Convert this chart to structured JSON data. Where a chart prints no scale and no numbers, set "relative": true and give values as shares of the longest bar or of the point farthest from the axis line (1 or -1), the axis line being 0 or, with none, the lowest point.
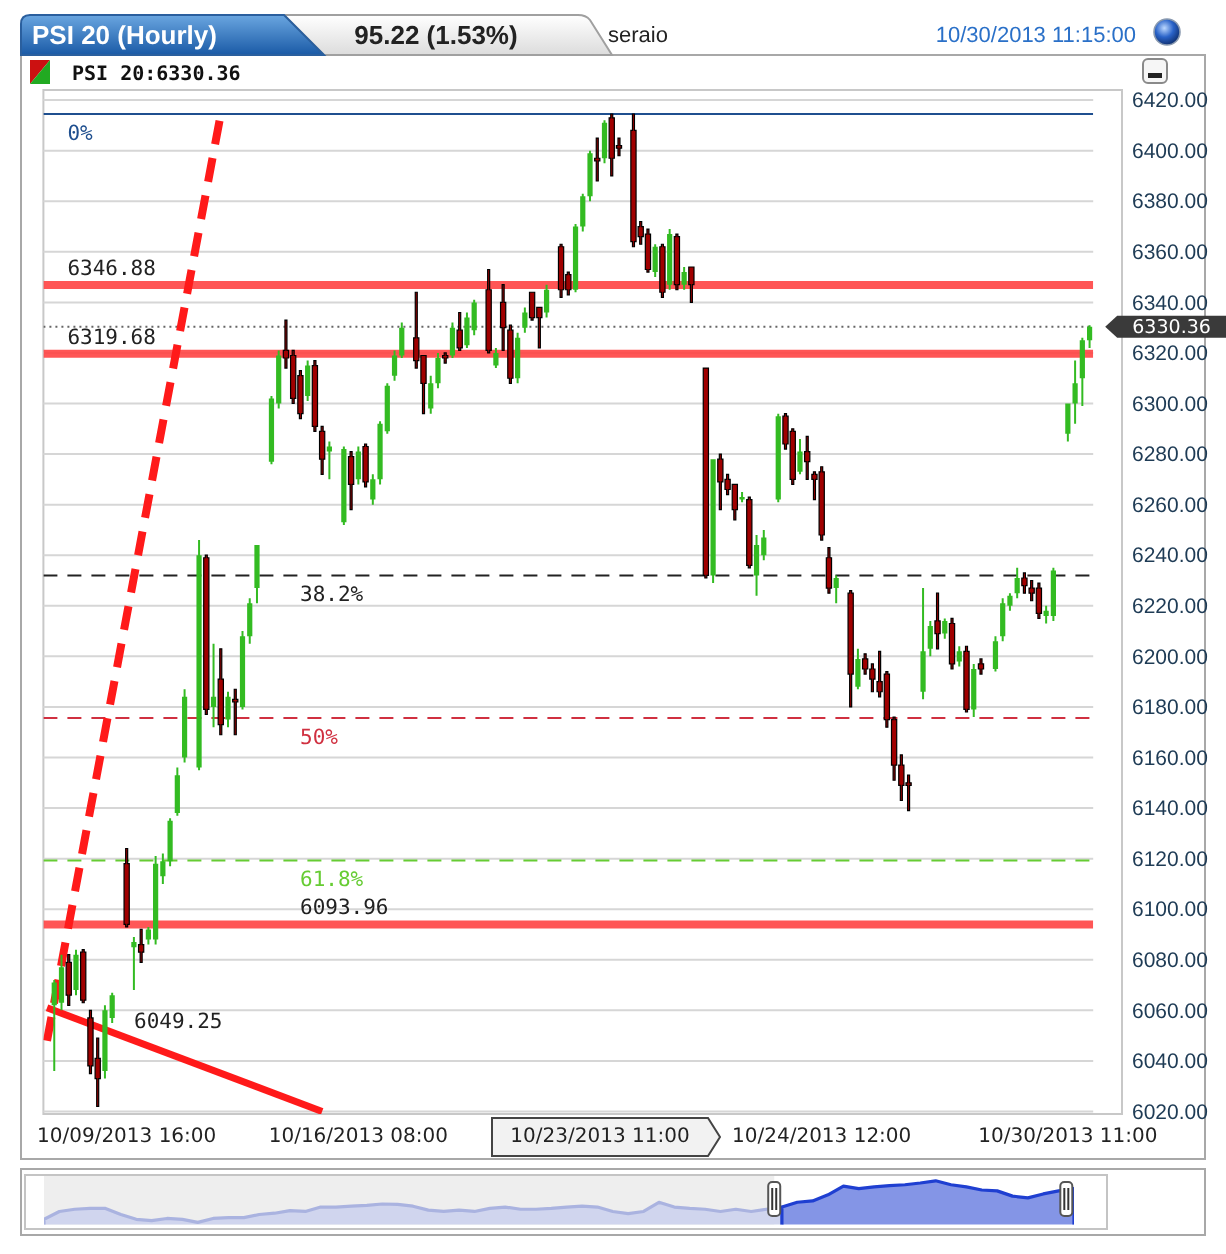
{
  "chart_data": [
    {
      "type": "candlestick",
      "title": "PSI 20 (Hourly)",
      "subtitle": "95.22 (1.53%)",
      "annotations": [
        "seraio",
        "10/30/2013 11:15:00",
        "PSI 20:6330.36",
        "6049.25",
        "10/23/2013 11:00",
        {
          "text": "0%",
          "y": 6414.5
        },
        {
          "text": "38.2%",
          "y": 6232
        },
        {
          "text": "50%",
          "y": 6175.6
        },
        {
          "text": "61.8%",
          "y": 6119.3
        }
      ],
      "categories": [
        null,
        null,
        null,
        null,
        null,
        null,
        null,
        null,
        null,
        null,
        null,
        "10/09/2013 16:00",
        null,
        null,
        null,
        null,
        null,
        null,
        null,
        null,
        null,
        null,
        null,
        null,
        null,
        null,
        null,
        null,
        null,
        null,
        null,
        null,
        null,
        null,
        null,
        null,
        null,
        null,
        null,
        null,
        null,
        null,
        null,
        "10/16/2013 08:00",
        null,
        null,
        null,
        null,
        null,
        null,
        null,
        null,
        null,
        null,
        null,
        null,
        null,
        null,
        null,
        null,
        null,
        null,
        null,
        null,
        null,
        null,
        null,
        null,
        null,
        null,
        null,
        null,
        null,
        null,
        null,
        null,
        null,
        null,
        null,
        null,
        null,
        null,
        null,
        null,
        null,
        null,
        null,
        null,
        null,
        null,
        null,
        null,
        null,
        null,
        null,
        null,
        null,
        null,
        null,
        null,
        null,
        null,
        null,
        null,
        null,
        null,
        null,
        "10/24/2013 12:00",
        null,
        null,
        null,
        null,
        null,
        null,
        null,
        null,
        null,
        null,
        null,
        null,
        null,
        null,
        null,
        null,
        null,
        null,
        null,
        null,
        null,
        null,
        null,
        null,
        null,
        null,
        null,
        null,
        null,
        null,
        null,
        null,
        null,
        "10/30/2013 11:00",
        null,
        null,
        null
      ],
      "ohlc": [
        null,
        [
          6062,
          6072,
          6036,
          6071
        ],
        [
          6063,
          6082,
          6060,
          6077
        ],
        [
          6079,
          6082,
          6062,
          6066
        ],
        [
          6068,
          6084,
          6066,
          6082
        ],
        [
          6083,
          6084,
          6063,
          6064
        ],
        [
          6057,
          6060,
          6035,
          6038
        ],
        [
          6041,
          6049,
          6022,
          6033
        ],
        [
          6036,
          6062,
          6033,
          6060
        ],
        [
          6057,
          6067,
          6055,
          6066
        ],
        null,
        [
          6118,
          6124,
          6093,
          6094
        ],
        [
          6085,
          6089,
          6068,
          6087
        ],
        [
          6086,
          6092,
          6079,
          6083
        ],
        [
          6088,
          6093,
          6086,
          6092
        ],
        [
          6088,
          6121,
          6086,
          6118
        ],
        [
          6113,
          6122,
          6110,
          6119
        ],
        [
          6119,
          6136,
          6117,
          6135
        ],
        [
          6138,
          6156,
          6137,
          6153
        ],
        [
          6160,
          6187,
          6158,
          6184
        ],
        null,
        [
          6156,
          6246,
          6155,
          6240
        ],
        [
          6239,
          6240,
          6177,
          6179
        ],
        [
          6180,
          6205,
          6172,
          6184
        ],
        [
          6191,
          6203,
          6169,
          6173
        ],
        [
          6175,
          6186,
          6172,
          6184
        ],
        [
          6183,
          6187,
          6169,
          6182
        ],
        [
          6180,
          6210,
          6179,
          6208
        ],
        [
          6208,
          6223,
          6205,
          6221
        ],
        [
          6227,
          6244,
          6221,
          6244
        ],
        null,
        [
          6277,
          6303,
          6276,
          6302
        ],
        [
          6300,
          6321,
          6298,
          6319
        ],
        [
          6321,
          6333,
          6314,
          6318
        ],
        [
          6319,
          6321,
          6300,
          6302
        ],
        [
          6311,
          6313,
          6294,
          6296
        ],
        [
          6303,
          6317,
          6301,
          6315
        ],
        [
          6315,
          6317,
          6289,
          6291
        ],
        [
          6289,
          6291,
          6272,
          6278
        ],
        [
          6281,
          6285,
          6270,
          6283
        ],
        null,
        [
          6253,
          6283,
          6252,
          6282
        ],
        [
          6279,
          6281,
          6258,
          6268
        ],
        [
          6270,
          6283,
          6268,
          6281
        ],
        [
          6283,
          6284,
          6267,
          6269
        ],
        [
          6262,
          6272,
          6260,
          6270
        ],
        [
          6270,
          6293,
          6268,
          6292
        ],
        [
          6289,
          6308,
          6288,
          6307
        ],
        [
          6311,
          6321,
          6309,
          6319
        ],
        [
          6319,
          6332,
          6318,
          6330
        ],
        null,
        [
          6326,
          6344,
          6314,
          6317
        ],
        [
          6319,
          6319,
          6296,
          6308
        ],
        [
          6298,
          6311,
          6296,
          6308
        ],
        [
          6308,
          6320,
          6306,
          6318
        ],
        [
          6319,
          6320,
          6316,
          6318
        ],
        [
          6319,
          6332,
          6318,
          6330
        ],
        [
          6329,
          6336,
          6321,
          6322
        ],
        [
          6323,
          6336,
          6322,
          6334
        ],
        [
          6329,
          6341,
          6327,
          6340
        ],
        null,
        [
          6345,
          6353,
          6320,
          6321
        ],
        [
          6315,
          6322,
          6314,
          6320
        ],
        [
          6340,
          6347,
          6321,
          6330
        ],
        [
          6329,
          6331,
          6308,
          6310
        ],
        [
          6310,
          6328,
          6308,
          6326
        ],
        [
          6330,
          6338,
          6328,
          6336
        ],
        [
          6344,
          6344,
          6333,
          6334
        ],
        [
          6338,
          6338,
          6322,
          6334
        ],
        [
          6336,
          6347,
          6334,
          6345
        ],
        null,
        [
          6362,
          6363,
          6342,
          6345
        ],
        [
          6351,
          6352,
          6343,
          6345
        ],
        [
          6345,
          6371,
          6344,
          6370
        ],
        [
          6370,
          6383,
          6368,
          6382
        ],
        [
          6382,
          6400,
          6380,
          6399
        ],
        [
          6397,
          6405,
          6388,
          6396
        ],
        [
          6397,
          6412,
          6395,
          6411
        ],
        [
          6413,
          6414.5,
          6390,
          6397
        ],
        [
          6402,
          6405,
          6398,
          6401
        ],
        null,
        [
          6408,
          6414.5,
          6362,
          6364
        ],
        [
          6370,
          6372,
          6363,
          6366
        ],
        [
          6367,
          6369,
          6352,
          6353
        ],
        [
          6352,
          6363,
          6350,
          6362
        ],
        [
          6362,
          6363,
          6342,
          6344
        ],
        [
          6347,
          6369,
          6345,
          6367
        ],
        [
          6366,
          6367,
          6345,
          6347
        ],
        [
          6347,
          6354,
          6345,
          6352
        ],
        [
          6354,
          6354,
          6340,
          6347
        ],
        null,
        [
          6314,
          6314,
          6231,
          6232
        ],
        [
          6232,
          6278,
          6229,
          6278
        ],
        [
          6278,
          6280,
          6258,
          6269
        ],
        [
          6270,
          6272,
          6264,
          6266
        ],
        [
          6268,
          6268,
          6254,
          6258
        ],
        [
          6262,
          6265,
          6261,
          6263
        ],
        [
          6262,
          6263,
          6235,
          6236
        ],
        [
          6232,
          6248,
          6224,
          6244
        ],
        [
          6240,
          6250,
          6238,
          6247
        ],
        null,
        [
          6262,
          6296,
          6261,
          6295
        ],
        [
          6295,
          6296,
          6282,
          6284
        ],
        [
          6289,
          6290,
          6268,
          6270
        ],
        [
          6273,
          6286,
          6272,
          6281
        ],
        [
          6281,
          6287,
          6270,
          6277
        ],
        [
          6272,
          6273,
          6262,
          6270
        ],
        [
          6273,
          6275,
          6246,
          6248
        ],
        [
          6239,
          6243,
          6225,
          6227
        ],
        [
          6227,
          6232,
          6221,
          6231
        ],
        null,
        [
          6225,
          6226,
          6180,
          6193
        ],
        [
          6188,
          6203,
          6187,
          6199
        ],
        [
          6199,
          6201,
          6193,
          6195
        ],
        [
          6195,
          6197,
          6186,
          6191
        ],
        [
          6190,
          6202,
          6184,
          6186
        ],
        [
          6193,
          6194,
          6172,
          6175
        ],
        [
          6175,
          6176,
          6151,
          6157
        ],
        [
          6157,
          6161,
          6143,
          6149
        ],
        [
          6150,
          6153,
          6139,
          6149
        ],
        null,
        [
          6186,
          6227,
          6183,
          6202
        ],
        [
          6203,
          6214,
          6200,
          6212
        ],
        [
          6214,
          6225,
          6203,
          6209
        ],
        [
          6209,
          6215,
          6207,
          6214
        ],
        [
          6213,
          6215,
          6195,
          6197
        ],
        [
          6198,
          6204,
          6196,
          6202
        ],
        [
          6202,
          6204,
          6178,
          6179
        ],
        [
          6179,
          6197,
          6176,
          6195
        ],
        [
          6197,
          6199,
          6193,
          6195
        ],
        null,
        [
          6195,
          6208,
          6194,
          6206
        ],
        [
          6208,
          6223,
          6206,
          6221
        ],
        [
          6220,
          6225,
          6218,
          6224
        ],
        [
          6225,
          6235,
          6223,
          6231
        ],
        [
          6231,
          6233,
          6225,
          6228
        ],
        [
          6227,
          6230,
          6222,
          6225
        ],
        [
          6227,
          6229,
          6215,
          6217
        ],
        [
          6216,
          6220,
          6213,
          6218
        ],
        [
          6216,
          6235,
          6214,
          6234
        ],
        null,
        [
          6288,
          6300,
          6285,
          6300
        ],
        [
          6300,
          6317,
          6292,
          6308
        ],
        [
          6310,
          6326,
          6299,
          6325
        ],
        [
          6325,
          6331,
          6322,
          6330.36
        ]
      ],
      "colors": [
        null,
        "#33bb22",
        "#33bb22",
        "#a00000",
        "#33bb22",
        "#a00000",
        "#a00000",
        "#a00000",
        "#33bb22",
        "#33bb22",
        null,
        "#a00000",
        "#33bb22",
        "#a00000",
        "#33bb22",
        "#33bb22",
        "#33bb22",
        "#33bb22",
        "#33bb22",
        "#33bb22",
        null,
        "#33bb22",
        "#a00000",
        "#33bb22",
        "#a00000",
        "#33bb22",
        "#a00000",
        "#33bb22",
        "#33bb22",
        "#33bb22",
        null,
        "#33bb22",
        "#33bb22",
        "#a00000",
        "#a00000",
        "#a00000",
        "#33bb22",
        "#a00000",
        "#a00000",
        "#33bb22",
        null,
        "#33bb22",
        "#a00000",
        "#33bb22",
        "#a00000",
        "#33bb22",
        "#33bb22",
        "#33bb22",
        "#33bb22",
        "#33bb22",
        null,
        "#a00000",
        "#a00000",
        "#33bb22",
        "#33bb22",
        "#a00000",
        "#33bb22",
        "#a00000",
        "#33bb22",
        "#33bb22",
        null,
        "#a00000",
        "#33bb22",
        "#a00000",
        "#a00000",
        "#33bb22",
        "#33bb22",
        "#a00000",
        "#a00000",
        "#33bb22",
        null,
        "#a00000",
        "#a00000",
        "#33bb22",
        "#33bb22",
        "#33bb22",
        "#a00000",
        "#33bb22",
        "#a00000",
        "#a00000",
        null,
        "#a00000",
        "#a00000",
        "#a00000",
        "#33bb22",
        "#a00000",
        "#33bb22",
        "#a00000",
        "#33bb22",
        "#a00000",
        null,
        "#a00000",
        "#33bb22",
        "#a00000",
        "#a00000",
        "#a00000",
        "#33bb22",
        "#a00000",
        "#33bb22",
        "#33bb22",
        null,
        "#33bb22",
        "#a00000",
        "#a00000",
        "#33bb22",
        "#a00000",
        "#a00000",
        "#a00000",
        "#a00000",
        "#33bb22",
        null,
        "#a00000",
        "#33bb22",
        "#a00000",
        "#a00000",
        "#a00000",
        "#a00000",
        "#a00000",
        "#a00000",
        "#a00000",
        null,
        "#33bb22",
        "#33bb22",
        "#a00000",
        "#33bb22",
        "#a00000",
        "#33bb22",
        "#a00000",
        "#33bb22",
        "#a00000",
        null,
        "#33bb22",
        "#33bb22",
        "#33bb22",
        "#33bb22",
        "#a00000",
        "#a00000",
        "#a00000",
        "#33bb22",
        "#33bb22",
        null,
        "#33bb22",
        "#33bb22",
        "#33bb22",
        "#33bb22"
      ],
      "series": [
        {
          "type": "line",
          "color": "#ff1a1a",
          "line_style": "dashed",
          "values": [
            6048,
            null,
            null,
            null,
            null,
            null,
            null,
            null,
            null,
            null,
            null,
            null,
            null,
            null,
            null,
            null,
            null,
            null,
            null,
            null,
            null,
            null,
            null,
            null,
            6414.5,
            null,
            null,
            null,
            null,
            null,
            null,
            null,
            null,
            null,
            null,
            null,
            null,
            null,
            null,
            null,
            null,
            null,
            null,
            null,
            null,
            null,
            null,
            null,
            null,
            null,
            null,
            null,
            null,
            null,
            null,
            null,
            null,
            null,
            null,
            null,
            null,
            null,
            null,
            null,
            null,
            null,
            null,
            null,
            null,
            null,
            null,
            null,
            null,
            null,
            null,
            null,
            null,
            null,
            null,
            null,
            null,
            null,
            null,
            null,
            null,
            null,
            null,
            null,
            null,
            null,
            null,
            null,
            null,
            null,
            null,
            null,
            null,
            null,
            null,
            null,
            null,
            null,
            null,
            null,
            null,
            null,
            null,
            null,
            null,
            null,
            null,
            null,
            null,
            null,
            null,
            null,
            null,
            null,
            null,
            null,
            null,
            null,
            null,
            null,
            null,
            null,
            null,
            null,
            null,
            null,
            null,
            null,
            null,
            null,
            null,
            null,
            null,
            null,
            null,
            null,
            null,
            null,
            null,
            null,
            null
          ]
        },
        {
          "type": "line",
          "color": "#ff1a1a",
          "line_style": "solid",
          "values": [
            6061,
            null,
            null,
            null,
            null,
            null,
            null,
            null,
            null,
            null,
            null,
            null,
            null,
            null,
            null,
            null,
            null,
            null,
            null,
            null,
            null,
            null,
            null,
            null,
            null,
            null,
            null,
            null,
            null,
            null,
            null,
            null,
            null,
            null,
            null,
            null,
            null,
            null,
            6020,
            null,
            null,
            null,
            null,
            null,
            null,
            null,
            null,
            null,
            null,
            null,
            null,
            null,
            null,
            null,
            null,
            null,
            null,
            null,
            null,
            null,
            null,
            null,
            null,
            null,
            null,
            null,
            null,
            null,
            null,
            null,
            null,
            null,
            null,
            null,
            null,
            null,
            null,
            null,
            null,
            null,
            null,
            null,
            null,
            null,
            null,
            null,
            null,
            null,
            null,
            null,
            null,
            null,
            null,
            null,
            null,
            null,
            null,
            null,
            null,
            null,
            null,
            null,
            null,
            null,
            null,
            null,
            null,
            null,
            null,
            null,
            null,
            null,
            null,
            null,
            null,
            null,
            null,
            null,
            null,
            null,
            null,
            null,
            null,
            null,
            null,
            null,
            null,
            null,
            null,
            null,
            null,
            null,
            null,
            null,
            null,
            null,
            null,
            null,
            null,
            null,
            null,
            null,
            null,
            null,
            null
          ]
        }
      ],
      "ylim": [
        6019,
        6424
      ],
      "yticks": [
        {
          "value": 6020,
          "label": "6020.00"
        },
        {
          "value": 6040,
          "label": "6040.00"
        },
        {
          "value": 6060,
          "label": "6060.00"
        },
        {
          "value": 6080,
          "label": "6080.00"
        },
        {
          "value": 6100,
          "label": "6100.00"
        },
        {
          "value": 6120,
          "label": "6120.00"
        },
        {
          "value": 6140,
          "label": "6140.00"
        },
        {
          "value": 6160,
          "label": "6160.00"
        },
        {
          "value": 6180,
          "label": "6180.00"
        },
        {
          "value": 6200,
          "label": "6200.00"
        },
        {
          "value": 6220,
          "label": "6220.00"
        },
        {
          "value": 6240,
          "label": "6240.00"
        },
        {
          "value": 6260,
          "label": "6260.00"
        },
        {
          "value": 6280,
          "label": "6280.00"
        },
        {
          "value": 6300,
          "label": "6300.00"
        },
        {
          "value": 6320,
          "label": "6320.00"
        },
        {
          "value": 6340,
          "label": "6340.00"
        },
        {
          "value": 6360,
          "label": "6360.00"
        },
        {
          "value": 6380,
          "label": "6380.00"
        },
        {
          "value": 6400,
          "label": "6400.00"
        },
        {
          "value": 6420,
          "label": "6420.00"
        }
      ],
      "grid": "y",
      "ref_lines": [
        {
          "axis": "y",
          "value": 6414.5,
          "color": "#1f4f8f",
          "line_style": "solid"
        },
        {
          "axis": "y",
          "value": 6346.88,
          "label": "6346.88",
          "color": "#ff4444"
        },
        {
          "axis": "y",
          "value": 6330.36,
          "label": "6330.36",
          "color": "#666666",
          "line_style": "dotted"
        },
        {
          "axis": "y",
          "value": 6319.68,
          "label": "6319.68",
          "color": "#ff4444"
        },
        {
          "axis": "y",
          "value": 6232,
          "color": "#222222",
          "line_style": "dashed"
        },
        {
          "axis": "y",
          "value": 6175.6,
          "color": "#d03040",
          "line_style": "dashed"
        },
        {
          "axis": "y",
          "value": 6119.3,
          "color": "#66cc33",
          "line_style": "dashed"
        },
        {
          "axis": "y",
          "value": 6093.96,
          "label": "6093.96",
          "color": "#ff4444"
        }
      ]
    },
    {
      "type": "area",
      "relative": true,
      "categories": [
        null,
        null,
        null,
        null,
        null,
        null,
        null,
        null,
        null,
        null,
        null,
        null,
        null,
        null,
        null,
        null,
        null,
        null,
        null,
        null,
        null,
        null,
        null,
        null,
        null,
        null,
        null,
        null,
        null,
        null,
        null,
        null,
        null,
        null,
        null,
        null,
        null,
        null,
        null,
        null,
        null,
        null,
        null,
        null,
        null,
        null,
        null,
        null,
        null,
        null,
        null,
        null,
        null,
        null,
        null,
        null,
        null,
        null,
        null,
        null,
        null,
        null,
        null,
        null,
        null,
        null,
        null,
        null
      ],
      "series": [
        {
          "color": "#aab3e0",
          "values": [
            0.12,
            0.3,
            0.35,
            0.37,
            0.37,
            0.23,
            0.12,
            0.09,
            0.14,
            0.12,
            0.05,
            0.14,
            0.16,
            0.16,
            0.23,
            0.26,
            0.32,
            0.3,
            0.4,
            0.4,
            0.42,
            0.44,
            0.47,
            0.46,
            0.42,
            0.33,
            0.3,
            0.33,
            0.3,
            0.37,
            0.4,
            0.35,
            0.35,
            0.37,
            0.4,
            0.42,
            0.4,
            0.3,
            0.25,
            0.3,
            0.51,
            0.4,
            0.37,
            0.35,
            0.3,
            0.35,
            0.3,
            0.35,
            0.4,
            null,
            null,
            null,
            null,
            null,
            null,
            null,
            null,
            null,
            null,
            null,
            null,
            null,
            null,
            null,
            null,
            null,
            null,
            null
          ]
        },
        {
          "color": "#1f3fd1",
          "values": [
            null,
            null,
            null,
            null,
            null,
            null,
            null,
            null,
            null,
            null,
            null,
            null,
            null,
            null,
            null,
            null,
            null,
            null,
            null,
            null,
            null,
            null,
            null,
            null,
            null,
            null,
            null,
            null,
            null,
            null,
            null,
            null,
            null,
            null,
            null,
            null,
            null,
            null,
            null,
            null,
            null,
            null,
            null,
            null,
            null,
            null,
            null,
            null,
            0.4,
            0.51,
            0.54,
            0.68,
            0.88,
            0.82,
            0.86,
            0.89,
            0.91,
            0.95,
            1,
            0.91,
            0.86,
            0.79,
            0.77,
            0.65,
            0.61,
            0.7,
            0.77,
            0.82
          ]
        }
      ]
    }
  ]
}
